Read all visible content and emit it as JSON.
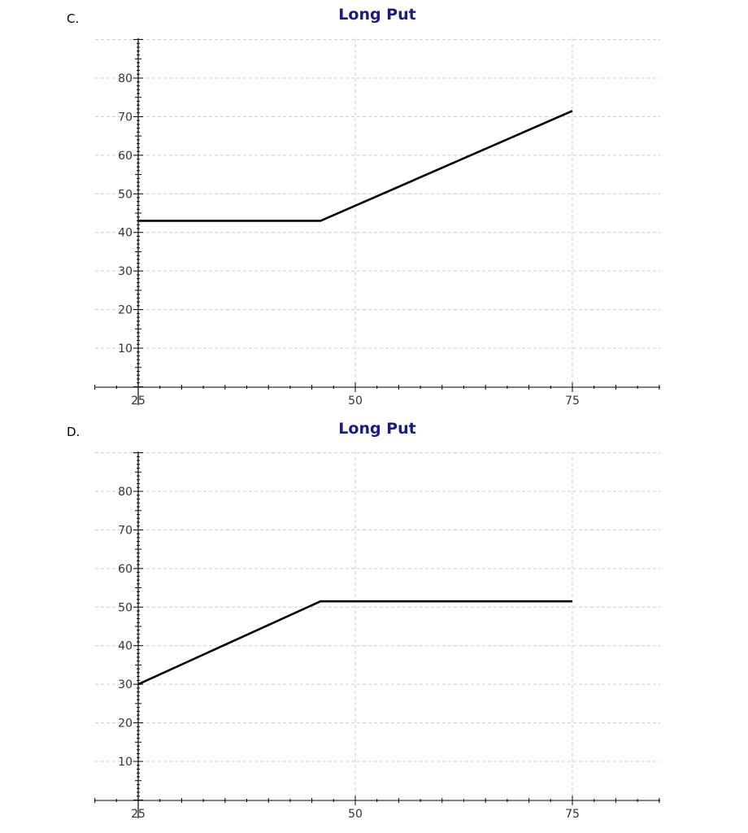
{
  "chart_data": [
    {
      "type": "line",
      "option": "C.",
      "title": "Long Put",
      "xlabel": "",
      "ylabel": "",
      "xlim": [
        20,
        85
      ],
      "ylim": [
        0,
        90
      ],
      "x_ticks": [
        25,
        50,
        75
      ],
      "y_ticks": [
        10,
        20,
        30,
        40,
        50,
        60,
        70,
        80
      ],
      "grid": true,
      "series": [
        {
          "x": [
            25,
            46,
            75
          ],
          "y": [
            43,
            43,
            71.5
          ]
        }
      ]
    },
    {
      "type": "line",
      "option": "D.",
      "title": "Long Put",
      "xlabel": "",
      "ylabel": "",
      "xlim": [
        20,
        85
      ],
      "ylim": [
        0,
        90
      ],
      "x_ticks": [
        25,
        50,
        75
      ],
      "y_ticks": [
        10,
        20,
        30,
        40,
        50,
        60,
        70,
        80
      ],
      "grid": true,
      "series": [
        {
          "x": [
            25,
            46,
            75
          ],
          "y": [
            30,
            51.5,
            51.5
          ]
        }
      ]
    }
  ],
  "colors": {
    "title": "#1a1a8c",
    "line": "#000000",
    "grid": "#cccccc",
    "axis": "#000000"
  }
}
